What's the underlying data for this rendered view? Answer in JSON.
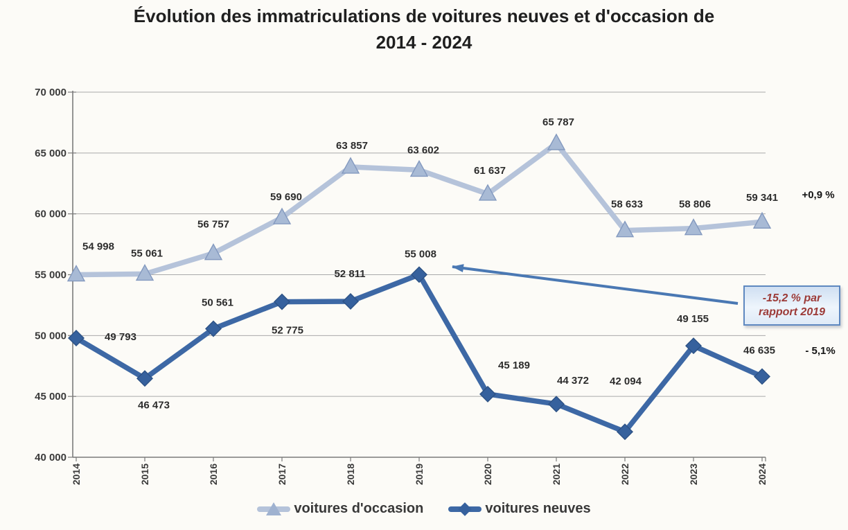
{
  "title": {
    "line1": "Évolution des immatriculations de voitures neuves et d'occasion de",
    "line2": "2014 - 2024"
  },
  "chart_data": {
    "type": "line",
    "categories": [
      "2014",
      "2015",
      "2016",
      "2017",
      "2018",
      "2019",
      "2020",
      "2021",
      "2022",
      "2023",
      "2024"
    ],
    "series": [
      {
        "name": "voitures d'occasion",
        "marker": "triangle",
        "values": [
          54998,
          55061,
          56757,
          59690,
          63857,
          63602,
          61637,
          65787,
          58633,
          58806,
          59341
        ],
        "labels": [
          "54 998",
          "55 061",
          "56 757",
          "59 690",
          "63 857",
          "63 602",
          "61 637",
          "65 787",
          "58 633",
          "58 806",
          "59 341"
        ],
        "end_note": "+0,9 %",
        "line_color": "#b5c3da",
        "marker_fill": "#a8bad5",
        "marker_edge": "#8399bf"
      },
      {
        "name": "voitures neuves",
        "marker": "diamond",
        "values": [
          49793,
          46473,
          50561,
          52775,
          52811,
          55008,
          45189,
          44372,
          42094,
          49155,
          46635
        ],
        "labels": [
          "49 793",
          "46 473",
          "50 561",
          "52 775",
          "52 811",
          "55 008",
          "45 189",
          "44 372",
          "42 094",
          "49 155",
          "46 635"
        ],
        "end_note": "- 5,1%",
        "line_color": "#3d68a5",
        "marker_fill": "#36619d",
        "marker_edge": "#2d5285"
      }
    ],
    "ylim": [
      40000,
      70000
    ],
    "ytick_step": 5000,
    "ytick_labels": [
      "40 000",
      "45 000",
      "50 000",
      "55 000",
      "60 000",
      "65 000",
      "70 000"
    ],
    "grid": true,
    "legend_position": "bottom",
    "annotation": {
      "text": "-15,2 % par rapport 2019",
      "text_color": "#9c3a37",
      "border_color": "#5e88c0",
      "arrow_color": "#4a78b3",
      "arrow_points_to": "voitures neuves 2019 (55 008)"
    }
  }
}
